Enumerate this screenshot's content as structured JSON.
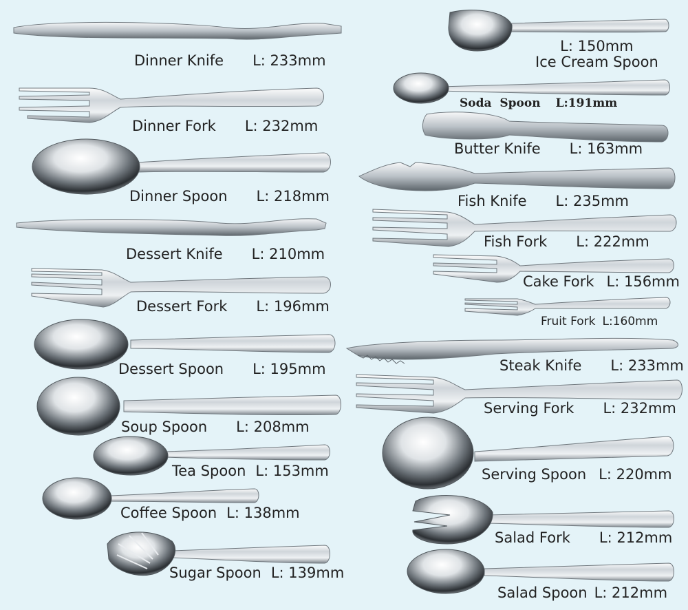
{
  "items": [
    {
      "name": "Dinner Knife",
      "length": "L: 233mm"
    },
    {
      "name": "Dinner Fork",
      "length": "L: 232mm"
    },
    {
      "name": "Dinner Spoon",
      "length": "L: 218mm"
    },
    {
      "name": "Dessert Knife",
      "length": "L: 210mm"
    },
    {
      "name": "Dessert Fork",
      "length": "L: 196mm"
    },
    {
      "name": "Dessert Spoon",
      "length": "L: 195mm"
    },
    {
      "name": "Soup Spoon",
      "length": "L: 208mm"
    },
    {
      "name": "Tea Spoon",
      "length": "L: 153mm"
    },
    {
      "name": "Coffee Spoon",
      "length": "L: 138mm"
    },
    {
      "name": "Sugar Spoon",
      "length": "L: 139mm"
    },
    {
      "name": "Ice Cream Spoon",
      "length": "L: 150mm"
    },
    {
      "name": "Soda  Spoon",
      "length": "L:191mm"
    },
    {
      "name": "Butter Knife",
      "length": "L: 163mm"
    },
    {
      "name": "Fish Knife",
      "length": "L: 235mm"
    },
    {
      "name": "Fish Fork",
      "length": "L: 222mm"
    },
    {
      "name": "Cake Fork",
      "length": "L: 156mm"
    },
    {
      "name": "Fruit Fork",
      "length": "L:160mm"
    },
    {
      "name": "Steak Knife",
      "length": "L: 233mm"
    },
    {
      "name": "Serving Fork",
      "length": "L: 232mm"
    },
    {
      "name": "Serving Spoon",
      "length": "L: 220mm"
    },
    {
      "name": "Salad Fork",
      "length": "L: 212mm"
    },
    {
      "name": "Salad Spoon",
      "length": "L: 212mm"
    }
  ],
  "colors": {
    "background": "#e4f3f8",
    "metal_light": "#f4f6f8",
    "metal_dark": "#8a929a",
    "text": "#222222"
  }
}
